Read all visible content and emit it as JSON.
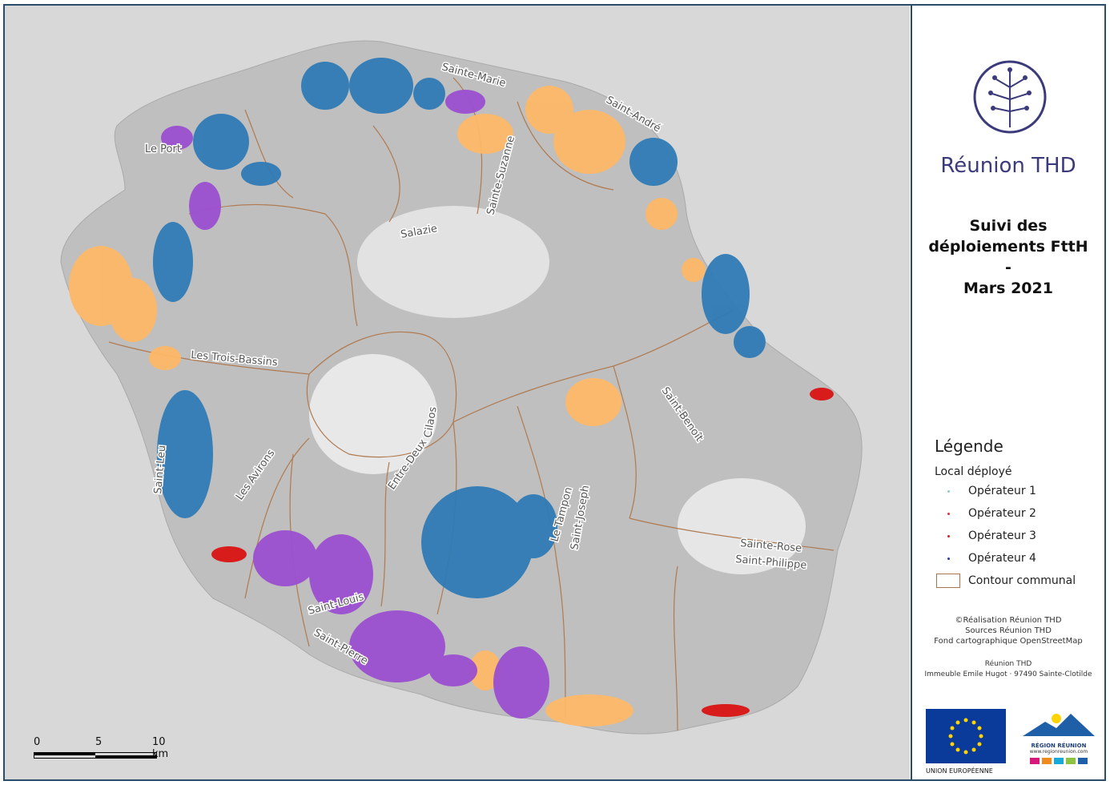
{
  "brand": {
    "name": "Réunion THD"
  },
  "title": {
    "line1": "Suivi des",
    "line2": "déploiements FttH",
    "line3": "-",
    "line4": "Mars 2021"
  },
  "legend": {
    "title": "Légende",
    "subtitle": "Local déployé",
    "items": [
      {
        "label": "Opérateur 1",
        "color": "#86d0c8"
      },
      {
        "label": "Opérateur 2",
        "color": "#e03030"
      },
      {
        "label": "Opérateur 3",
        "color": "#d81b1b"
      },
      {
        "label": "Opérateur 4",
        "color": "#2b3aa6"
      },
      {
        "label": "Contour communal",
        "color": "#a8754c"
      }
    ]
  },
  "credits": {
    "l1": "©Réalisation Réunion THD",
    "l2": "Sources Réunion THD",
    "l3": "Fond cartographique OpenStreetMap",
    "l4": "Réunion THD",
    "l5": "Immeuble Emile Hugot · 97490 Sainte-Clotilde"
  },
  "logos": {
    "eu": "UNION EUROPÉENNE",
    "region": "RÉGION RÉUNION",
    "region_url": "www.regionreunion.com"
  },
  "scalebar": {
    "l0": "0",
    "l5": "5",
    "l10": "10 km"
  },
  "communes": {
    "sainte_marie": "Sainte-Marie",
    "saint_andre": "Saint-André",
    "le_port": "Le Port",
    "sainte_suzanne": "Sainte-Suzanne",
    "salazie": "Salazie",
    "trois_bassins": "Les Trois-Bassins",
    "cilaos": "Cilaos",
    "saint_benoit": "Saint-Benoît",
    "entre_deux": "Entre-Deux",
    "les_avirons": "Les Avirons",
    "saint_leu": "Saint-Leu",
    "le_tampon": "Le Tampon",
    "saint_joseph": "Saint-Joseph",
    "sainte_rose": "Sainte-Rose",
    "saint_philippe": "Saint-Philippe",
    "saint_pierre": "Saint-Pierre",
    "saint_louis": "Saint-Louis"
  },
  "colors": {
    "blue": "#2f7bb5",
    "purple": "#9b4fd0",
    "orange": "#fdb867",
    "red": "#d81b1b",
    "border": "#2a4d6b",
    "commune": "#b07a50"
  }
}
